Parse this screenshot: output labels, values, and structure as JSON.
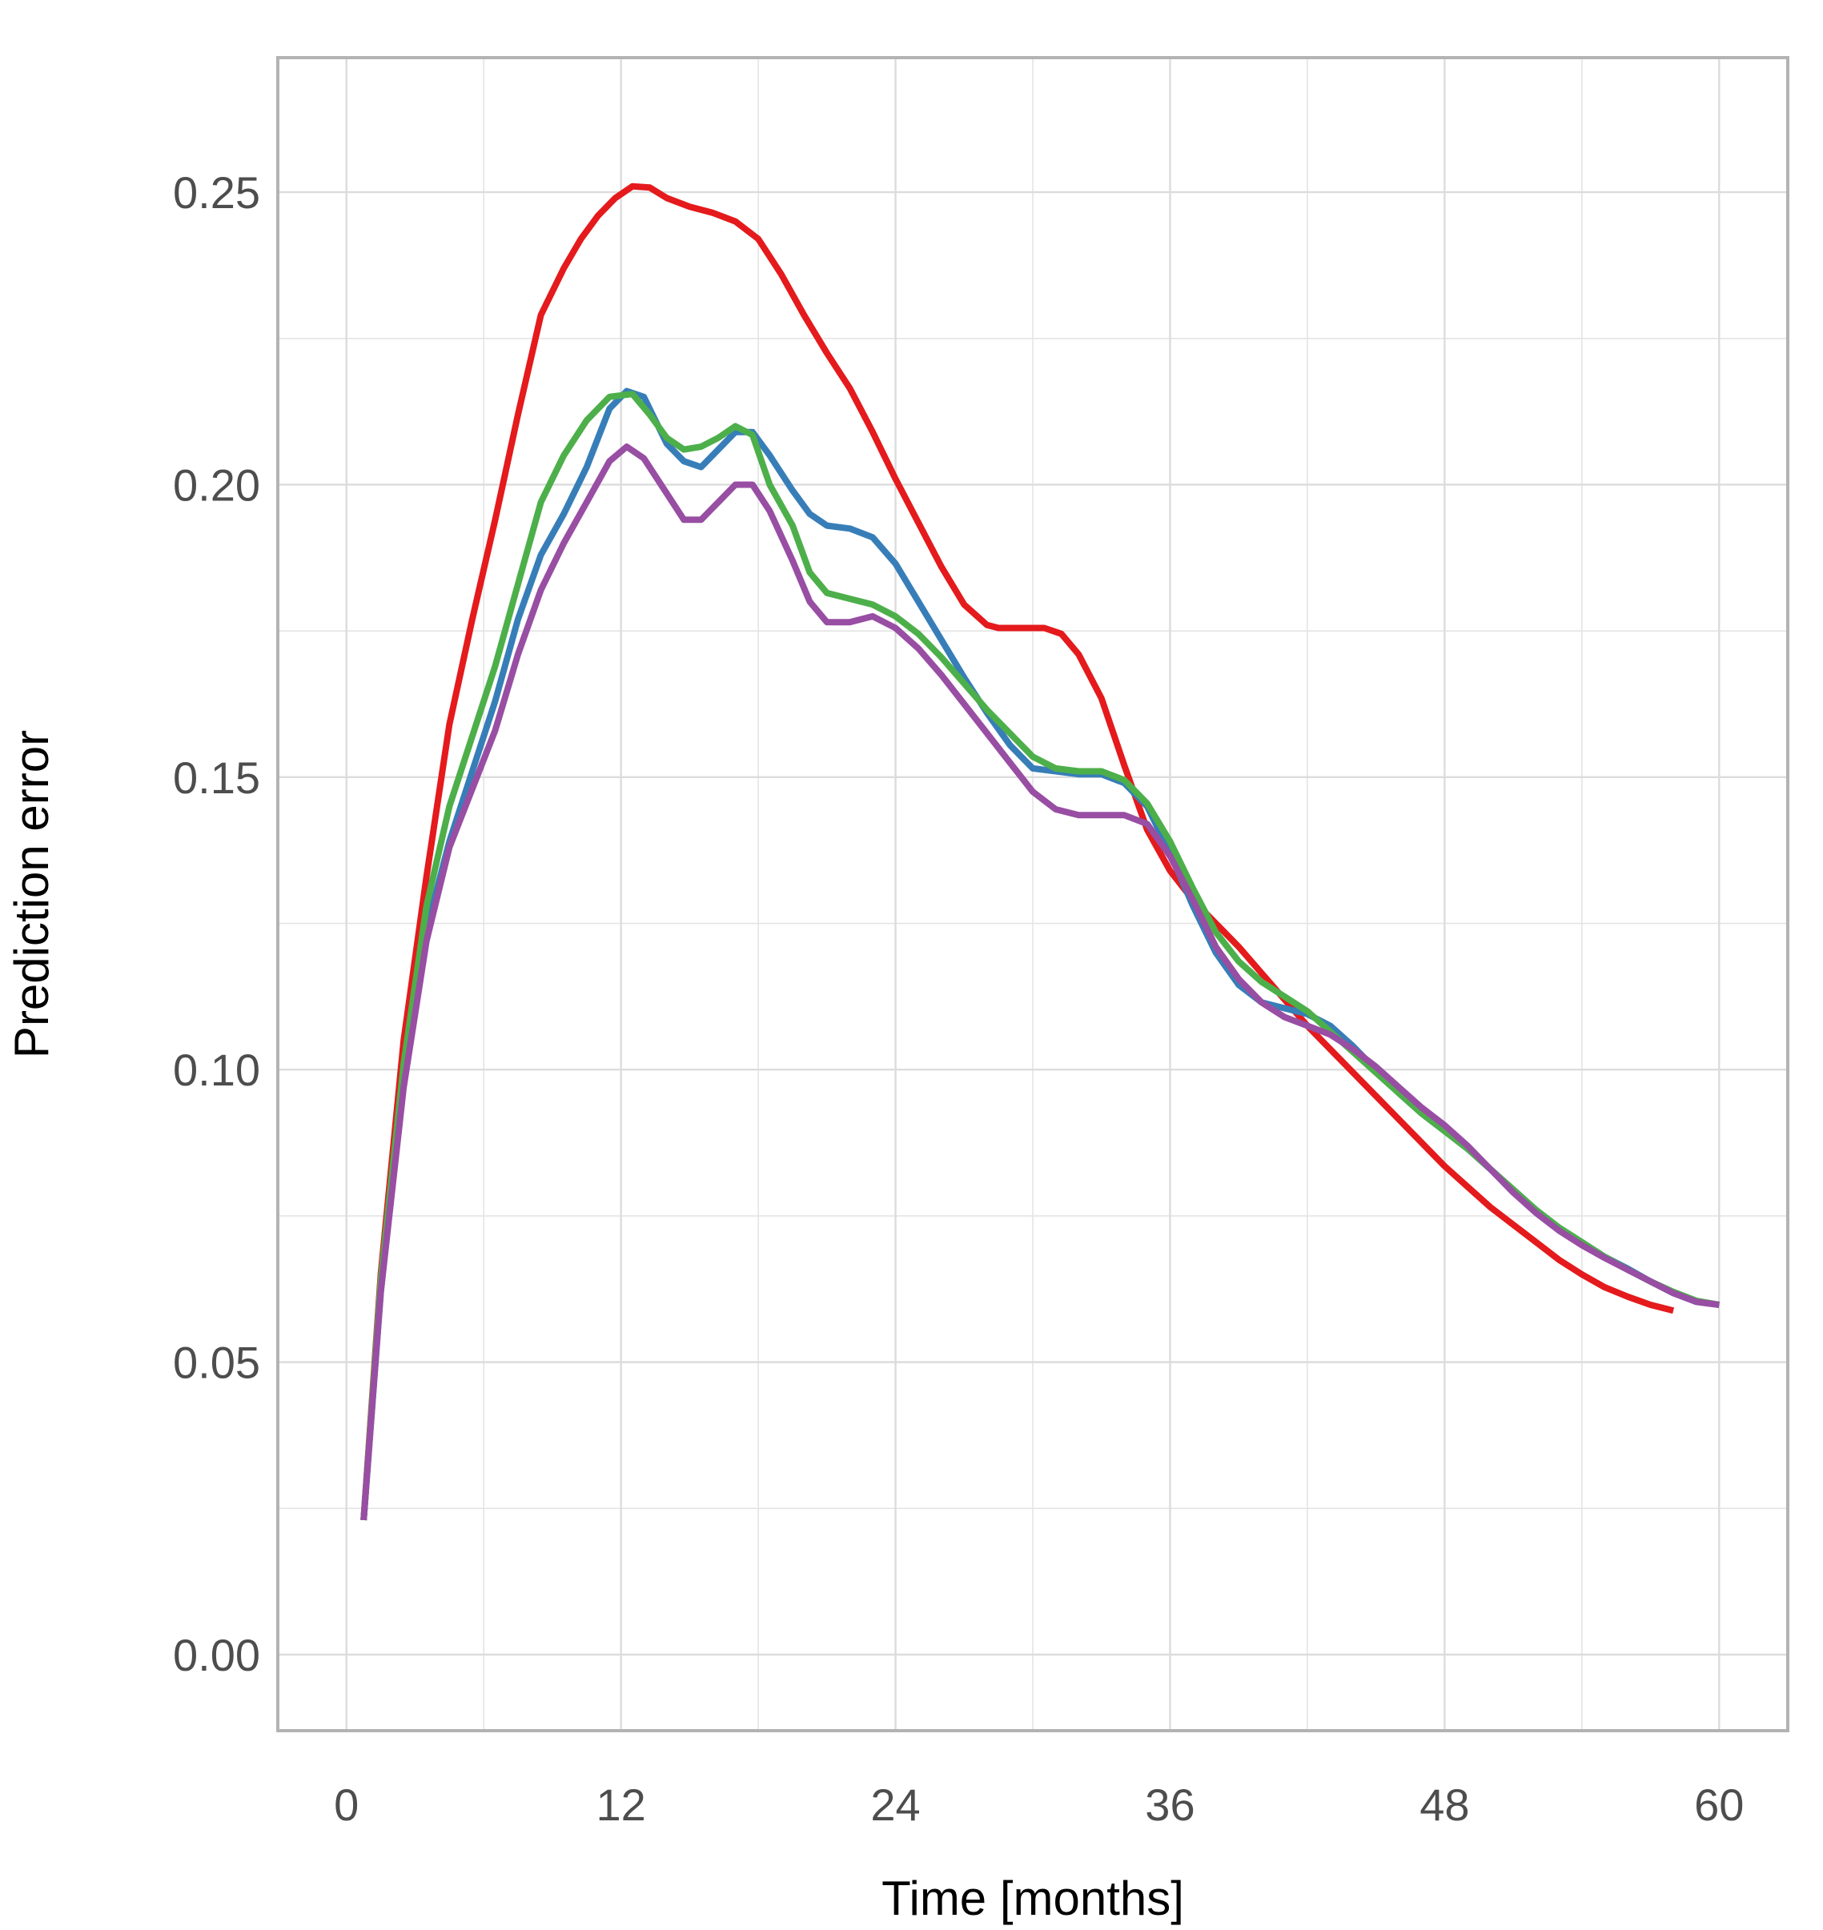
{
  "chart_data": {
    "type": "line",
    "title": "",
    "xlabel": "Time [months]",
    "ylabel": "Prediction error",
    "xlim": [
      -3.0,
      63.0
    ],
    "ylim": [
      -0.013,
      0.273
    ],
    "x_ticks": [
      0,
      12,
      24,
      36,
      48,
      60
    ],
    "x_tick_labels": [
      "0",
      "12",
      "24",
      "36",
      "48",
      "60"
    ],
    "y_ticks": [
      0.0,
      0.05,
      0.1,
      0.15,
      0.2,
      0.25
    ],
    "y_tick_labels": [
      "0.00",
      "0.05",
      "0.10",
      "0.15",
      "0.20",
      "0.25"
    ],
    "x_minor": [
      6,
      18,
      30,
      42,
      54
    ],
    "y_minor": [
      0.025,
      0.075,
      0.125,
      0.175,
      0.225
    ],
    "grid": true,
    "legend": null,
    "series": [
      {
        "name": "red",
        "color": "#e41a1c",
        "points": [
          [
            0.75,
            0.023
          ],
          [
            1.5,
            0.065
          ],
          [
            2.5,
            0.105
          ],
          [
            3.5,
            0.133
          ],
          [
            4.5,
            0.159
          ],
          [
            5.5,
            0.177
          ],
          [
            6.5,
            0.194
          ],
          [
            7.5,
            0.212
          ],
          [
            8.5,
            0.229
          ],
          [
            9.5,
            0.237
          ],
          [
            10.25,
            0.242
          ],
          [
            11,
            0.246
          ],
          [
            11.75,
            0.249
          ],
          [
            12.5,
            0.251
          ],
          [
            13.25,
            0.2508
          ],
          [
            14,
            0.249
          ],
          [
            15,
            0.2475
          ],
          [
            16,
            0.2465
          ],
          [
            17,
            0.245
          ],
          [
            18,
            0.242
          ],
          [
            19,
            0.236
          ],
          [
            20,
            0.229
          ],
          [
            21,
            0.2225
          ],
          [
            22,
            0.2165
          ],
          [
            23,
            0.209
          ],
          [
            24,
            0.201
          ],
          [
            25,
            0.1935
          ],
          [
            26,
            0.186
          ],
          [
            27,
            0.1795
          ],
          [
            28,
            0.176
          ],
          [
            28.5,
            0.1755
          ],
          [
            29.5,
            0.1755
          ],
          [
            30.5,
            0.1755
          ],
          [
            31.25,
            0.1745
          ],
          [
            32,
            0.171
          ],
          [
            33,
            0.1635
          ],
          [
            34,
            0.152
          ],
          [
            35,
            0.141
          ],
          [
            36,
            0.134
          ],
          [
            37,
            0.129
          ],
          [
            38,
            0.125
          ],
          [
            39,
            0.121
          ],
          [
            40,
            0.1165
          ],
          [
            41,
            0.112
          ],
          [
            42,
            0.1075
          ],
          [
            43,
            0.1035
          ],
          [
            44,
            0.0995
          ],
          [
            45,
            0.0955
          ],
          [
            46,
            0.0915
          ],
          [
            47,
            0.0875
          ],
          [
            48,
            0.0835
          ],
          [
            49,
            0.08
          ],
          [
            50,
            0.0765
          ],
          [
            51,
            0.0735
          ],
          [
            52,
            0.0705
          ],
          [
            53,
            0.0675
          ],
          [
            54,
            0.065
          ],
          [
            55,
            0.0628
          ],
          [
            56,
            0.0612
          ],
          [
            57,
            0.0598
          ],
          [
            58,
            0.0588
          ]
        ]
      },
      {
        "name": "blue",
        "color": "#377eb8",
        "points": [
          [
            0.75,
            0.023
          ],
          [
            1.5,
            0.062
          ],
          [
            2.5,
            0.098
          ],
          [
            3.5,
            0.124
          ],
          [
            4.5,
            0.139
          ],
          [
            5.5,
            0.151
          ],
          [
            6.5,
            0.163
          ],
          [
            7.5,
            0.177
          ],
          [
            8.5,
            0.188
          ],
          [
            9.5,
            0.195
          ],
          [
            10.5,
            0.203
          ],
          [
            11.5,
            0.213
          ],
          [
            12.25,
            0.216
          ],
          [
            13,
            0.215
          ],
          [
            14,
            0.207
          ],
          [
            14.75,
            0.204
          ],
          [
            15.5,
            0.203
          ],
          [
            16.5,
            0.207
          ],
          [
            17,
            0.209
          ],
          [
            17.75,
            0.209
          ],
          [
            18.5,
            0.205
          ],
          [
            19.5,
            0.199
          ],
          [
            20.25,
            0.195
          ],
          [
            21,
            0.193
          ],
          [
            22,
            0.1925
          ],
          [
            23,
            0.191
          ],
          [
            24,
            0.1865
          ],
          [
            25,
            0.18
          ],
          [
            26,
            0.1735
          ],
          [
            27,
            0.167
          ],
          [
            28,
            0.161
          ],
          [
            29,
            0.1555
          ],
          [
            30,
            0.1515
          ],
          [
            31,
            0.151
          ],
          [
            32,
            0.1505
          ],
          [
            33,
            0.1505
          ],
          [
            34,
            0.149
          ],
          [
            35,
            0.145
          ],
          [
            36,
            0.137
          ],
          [
            37,
            0.128
          ],
          [
            38,
            0.12
          ],
          [
            39,
            0.1145
          ],
          [
            40,
            0.1115
          ],
          [
            41,
            0.1105
          ],
          [
            42,
            0.1095
          ],
          [
            43,
            0.1075
          ],
          [
            44,
            0.104
          ],
          [
            45,
            0.1
          ],
          [
            46,
            0.096
          ],
          [
            47,
            0.0925
          ],
          [
            48,
            0.0895
          ],
          [
            49,
            0.0865
          ],
          [
            50,
            0.083
          ],
          [
            51,
            0.0795
          ],
          [
            52,
            0.076
          ],
          [
            53,
            0.073
          ],
          [
            54,
            0.0705
          ],
          [
            55,
            0.068
          ],
          [
            56,
            0.066
          ],
          [
            57,
            0.0638
          ],
          [
            58,
            0.0618
          ],
          [
            59,
            0.0603
          ],
          [
            60,
            0.0598
          ]
        ]
      },
      {
        "name": "green",
        "color": "#4daf4a",
        "points": [
          [
            0.75,
            0.023
          ],
          [
            1.5,
            0.064
          ],
          [
            2.5,
            0.101
          ],
          [
            3.5,
            0.128
          ],
          [
            4.5,
            0.145
          ],
          [
            5.5,
            0.157
          ],
          [
            6.5,
            0.169
          ],
          [
            7.5,
            0.183
          ],
          [
            8.5,
            0.197
          ],
          [
            9.5,
            0.205
          ],
          [
            10.5,
            0.211
          ],
          [
            11.5,
            0.215
          ],
          [
            12.5,
            0.2155
          ],
          [
            13.25,
            0.212
          ],
          [
            14,
            0.208
          ],
          [
            14.75,
            0.206
          ],
          [
            15.5,
            0.2065
          ],
          [
            16.25,
            0.208
          ],
          [
            17,
            0.21
          ],
          [
            17.75,
            0.2085
          ],
          [
            18.5,
            0.2
          ],
          [
            19.5,
            0.193
          ],
          [
            20.25,
            0.185
          ],
          [
            21,
            0.1815
          ],
          [
            22,
            0.1805
          ],
          [
            23,
            0.1795
          ],
          [
            24,
            0.1775
          ],
          [
            25,
            0.1745
          ],
          [
            26,
            0.1705
          ],
          [
            27,
            0.166
          ],
          [
            28,
            0.1615
          ],
          [
            29,
            0.1575
          ],
          [
            30,
            0.1535
          ],
          [
            31,
            0.1515
          ],
          [
            32,
            0.151
          ],
          [
            33,
            0.151
          ],
          [
            34,
            0.1495
          ],
          [
            35,
            0.1455
          ],
          [
            36,
            0.139
          ],
          [
            37,
            0.131
          ],
          [
            38,
            0.1235
          ],
          [
            39,
            0.1185
          ],
          [
            40,
            0.115
          ],
          [
            41,
            0.1125
          ],
          [
            42,
            0.11
          ],
          [
            43,
            0.1065
          ],
          [
            44,
            0.103
          ],
          [
            45,
            0.0995
          ],
          [
            46,
            0.096
          ],
          [
            47,
            0.0925
          ],
          [
            48,
            0.0895
          ],
          [
            49,
            0.0865
          ],
          [
            50,
            0.083
          ],
          [
            51,
            0.0795
          ],
          [
            52,
            0.076
          ],
          [
            53,
            0.073
          ],
          [
            54,
            0.0705
          ],
          [
            55,
            0.068
          ],
          [
            56,
            0.0658
          ],
          [
            57,
            0.0638
          ],
          [
            58,
            0.062
          ],
          [
            59,
            0.0605
          ],
          [
            60,
            0.0598
          ]
        ]
      },
      {
        "name": "purple",
        "color": "#984ea3",
        "points": [
          [
            0.75,
            0.023
          ],
          [
            1.5,
            0.062
          ],
          [
            2.5,
            0.097
          ],
          [
            3.5,
            0.122
          ],
          [
            4.5,
            0.138
          ],
          [
            5.5,
            0.148
          ],
          [
            6.5,
            0.158
          ],
          [
            7.5,
            0.171
          ],
          [
            8.5,
            0.182
          ],
          [
            9.5,
            0.19
          ],
          [
            10.5,
            0.197
          ],
          [
            11.5,
            0.204
          ],
          [
            12.25,
            0.2065
          ],
          [
            13,
            0.2045
          ],
          [
            14,
            0.1985
          ],
          [
            14.75,
            0.194
          ],
          [
            15.5,
            0.194
          ],
          [
            16.25,
            0.197
          ],
          [
            17,
            0.2
          ],
          [
            17.75,
            0.2
          ],
          [
            18.5,
            0.1955
          ],
          [
            19.5,
            0.187
          ],
          [
            20.25,
            0.18
          ],
          [
            21,
            0.1765
          ],
          [
            22,
            0.1765
          ],
          [
            23,
            0.1775
          ],
          [
            24,
            0.1755
          ],
          [
            25,
            0.172
          ],
          [
            26,
            0.1675
          ],
          [
            27,
            0.1625
          ],
          [
            28,
            0.1575
          ],
          [
            29,
            0.1525
          ],
          [
            30,
            0.1475
          ],
          [
            31,
            0.1445
          ],
          [
            32,
            0.1435
          ],
          [
            33,
            0.1435
          ],
          [
            34,
            0.1435
          ],
          [
            35,
            0.142
          ],
          [
            36,
            0.1365
          ],
          [
            37,
            0.129
          ],
          [
            38,
            0.121
          ],
          [
            39,
            0.1155
          ],
          [
            40,
            0.1115
          ],
          [
            41,
            0.109
          ],
          [
            42,
            0.1075
          ],
          [
            43,
            0.106
          ],
          [
            44,
            0.1035
          ],
          [
            45,
            0.1005
          ],
          [
            46,
            0.097
          ],
          [
            47,
            0.0935
          ],
          [
            48,
            0.0905
          ],
          [
            49,
            0.087
          ],
          [
            50,
            0.083
          ],
          [
            51,
            0.079
          ],
          [
            52,
            0.0755
          ],
          [
            53,
            0.0725
          ],
          [
            54,
            0.07
          ],
          [
            55,
            0.0678
          ],
          [
            56,
            0.0658
          ],
          [
            57,
            0.0638
          ],
          [
            58,
            0.0618
          ],
          [
            59,
            0.0603
          ],
          [
            60,
            0.0598
          ]
        ]
      }
    ]
  }
}
